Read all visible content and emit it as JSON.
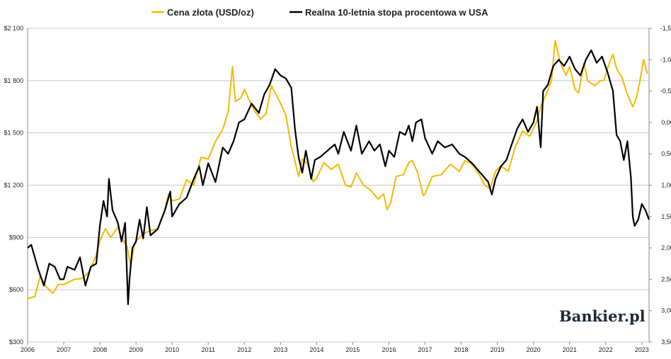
{
  "chart_data": {
    "type": "line",
    "title": "",
    "xlabel": "",
    "legend_position": "top",
    "grid": true,
    "x_ticks": [
      "2006",
      "2007",
      "2008",
      "2009",
      "2010",
      "2011",
      "2012",
      "2013",
      "2014",
      "2015",
      "2016",
      "2017",
      "2018",
      "2019",
      "2020",
      "2021",
      "2022",
      "2023"
    ],
    "y_left": {
      "min": 300,
      "max": 2100,
      "ticks": [
        "$300",
        "$600",
        "$900",
        "$1 200",
        "$1 500",
        "$1 800",
        "$2 100"
      ]
    },
    "y_right": {
      "min": -1.5,
      "max": 3.5,
      "inverted": true,
      "ticks": [
        "-1,50",
        "-1,00",
        "-0,50",
        "0,00",
        "0,50",
        "1,00",
        "1,50",
        "2,00",
        "2,50",
        "3,00",
        "3,50"
      ]
    },
    "series": [
      {
        "name": "Cena złota (USD/oz)",
        "axis": "left",
        "color": "#f5b800",
        "points": [
          [
            2006.0,
            550
          ],
          [
            2006.2,
            560
          ],
          [
            2006.35,
            680
          ],
          [
            2006.5,
            620
          ],
          [
            2006.7,
            580
          ],
          [
            2006.85,
            630
          ],
          [
            2007.0,
            630
          ],
          [
            2007.3,
            660
          ],
          [
            2007.5,
            665
          ],
          [
            2007.7,
            700
          ],
          [
            2007.9,
            800
          ],
          [
            2008.0,
            880
          ],
          [
            2008.15,
            950
          ],
          [
            2008.3,
            900
          ],
          [
            2008.5,
            960
          ],
          [
            2008.6,
            900
          ],
          [
            2008.75,
            850
          ],
          [
            2008.85,
            740
          ],
          [
            2008.95,
            850
          ],
          [
            2009.0,
            880
          ],
          [
            2009.2,
            920
          ],
          [
            2009.4,
            940
          ],
          [
            2009.6,
            950
          ],
          [
            2009.8,
            1060
          ],
          [
            2009.9,
            1150
          ],
          [
            2010.0,
            1110
          ],
          [
            2010.2,
            1120
          ],
          [
            2010.4,
            1230
          ],
          [
            2010.6,
            1200
          ],
          [
            2010.8,
            1360
          ],
          [
            2011.0,
            1350
          ],
          [
            2011.2,
            1450
          ],
          [
            2011.4,
            1520
          ],
          [
            2011.55,
            1620
          ],
          [
            2011.67,
            1880
          ],
          [
            2011.75,
            1680
          ],
          [
            2011.9,
            1700
          ],
          [
            2012.0,
            1750
          ],
          [
            2012.15,
            1680
          ],
          [
            2012.3,
            1620
          ],
          [
            2012.45,
            1580
          ],
          [
            2012.6,
            1610
          ],
          [
            2012.75,
            1770
          ],
          [
            2012.9,
            1710
          ],
          [
            2013.0,
            1670
          ],
          [
            2013.15,
            1600
          ],
          [
            2013.3,
            1420
          ],
          [
            2013.4,
            1340
          ],
          [
            2013.5,
            1250
          ],
          [
            2013.6,
            1350
          ],
          [
            2013.75,
            1320
          ],
          [
            2013.9,
            1220
          ],
          [
            2014.0,
            1240
          ],
          [
            2014.2,
            1330
          ],
          [
            2014.4,
            1290
          ],
          [
            2014.6,
            1320
          ],
          [
            2014.8,
            1200
          ],
          [
            2014.95,
            1190
          ],
          [
            2015.1,
            1270
          ],
          [
            2015.3,
            1200
          ],
          [
            2015.5,
            1170
          ],
          [
            2015.7,
            1120
          ],
          [
            2015.85,
            1150
          ],
          [
            2015.95,
            1060
          ],
          [
            2016.05,
            1100
          ],
          [
            2016.2,
            1250
          ],
          [
            2016.4,
            1260
          ],
          [
            2016.55,
            1330
          ],
          [
            2016.65,
            1340
          ],
          [
            2016.8,
            1270
          ],
          [
            2016.95,
            1140
          ],
          [
            2017.0,
            1150
          ],
          [
            2017.2,
            1250
          ],
          [
            2017.45,
            1260
          ],
          [
            2017.7,
            1320
          ],
          [
            2017.95,
            1280
          ],
          [
            2018.1,
            1340
          ],
          [
            2018.3,
            1320
          ],
          [
            2018.5,
            1260
          ],
          [
            2018.65,
            1200
          ],
          [
            2018.8,
            1180
          ],
          [
            2018.95,
            1280
          ],
          [
            2019.1,
            1310
          ],
          [
            2019.3,
            1280
          ],
          [
            2019.5,
            1420
          ],
          [
            2019.7,
            1510
          ],
          [
            2019.9,
            1480
          ],
          [
            2020.1,
            1570
          ],
          [
            2020.2,
            1650
          ],
          [
            2020.35,
            1720
          ],
          [
            2020.5,
            1800
          ],
          [
            2020.6,
            2030
          ],
          [
            2020.75,
            1900
          ],
          [
            2020.9,
            1830
          ],
          [
            2021.0,
            1880
          ],
          [
            2021.15,
            1750
          ],
          [
            2021.25,
            1730
          ],
          [
            2021.4,
            1900
          ],
          [
            2021.5,
            1800
          ],
          [
            2021.7,
            1770
          ],
          [
            2021.85,
            1800
          ],
          [
            2021.95,
            1800
          ],
          [
            2022.1,
            1900
          ],
          [
            2022.2,
            1950
          ],
          [
            2022.3,
            1870
          ],
          [
            2022.45,
            1820
          ],
          [
            2022.6,
            1720
          ],
          [
            2022.75,
            1650
          ],
          [
            2022.85,
            1700
          ],
          [
            2022.95,
            1800
          ],
          [
            2023.05,
            1920
          ],
          [
            2023.15,
            1840
          ]
        ]
      },
      {
        "name": "Realna 10-letnia stopa procentowa w USA",
        "axis": "right",
        "color": "#000000",
        "points": [
          [
            2006.0,
            2.0
          ],
          [
            2006.1,
            1.95
          ],
          [
            2006.3,
            2.35
          ],
          [
            2006.45,
            2.6
          ],
          [
            2006.6,
            2.25
          ],
          [
            2006.75,
            2.3
          ],
          [
            2006.9,
            2.5
          ],
          [
            2007.0,
            2.5
          ],
          [
            2007.1,
            2.3
          ],
          [
            2007.3,
            2.35
          ],
          [
            2007.45,
            2.15
          ],
          [
            2007.6,
            2.6
          ],
          [
            2007.75,
            2.3
          ],
          [
            2007.9,
            2.25
          ],
          [
            2008.0,
            1.65
          ],
          [
            2008.1,
            1.25
          ],
          [
            2008.2,
            1.5
          ],
          [
            2008.25,
            0.9
          ],
          [
            2008.35,
            1.4
          ],
          [
            2008.5,
            1.6
          ],
          [
            2008.6,
            1.9
          ],
          [
            2008.7,
            1.6
          ],
          [
            2008.78,
            2.9
          ],
          [
            2008.82,
            2.5
          ],
          [
            2008.9,
            2.0
          ],
          [
            2009.0,
            1.9
          ],
          [
            2009.1,
            1.55
          ],
          [
            2009.2,
            1.85
          ],
          [
            2009.3,
            1.35
          ],
          [
            2009.4,
            1.8
          ],
          [
            2009.6,
            1.7
          ],
          [
            2009.8,
            1.4
          ],
          [
            2009.95,
            1.1
          ],
          [
            2010.0,
            1.5
          ],
          [
            2010.2,
            1.3
          ],
          [
            2010.4,
            1.2
          ],
          [
            2010.6,
            0.9
          ],
          [
            2010.75,
            0.7
          ],
          [
            2010.85,
            1.0
          ],
          [
            2011.0,
            0.65
          ],
          [
            2011.2,
            0.95
          ],
          [
            2011.4,
            0.4
          ],
          [
            2011.55,
            0.5
          ],
          [
            2011.7,
            0.3
          ],
          [
            2011.85,
            0.0
          ],
          [
            2012.0,
            -0.05
          ],
          [
            2012.2,
            -0.3
          ],
          [
            2012.4,
            -0.15
          ],
          [
            2012.55,
            -0.45
          ],
          [
            2012.7,
            -0.6
          ],
          [
            2012.85,
            -0.85
          ],
          [
            2013.0,
            -0.75
          ],
          [
            2013.15,
            -0.7
          ],
          [
            2013.3,
            -0.55
          ],
          [
            2013.4,
            0.1
          ],
          [
            2013.5,
            0.55
          ],
          [
            2013.6,
            0.8
          ],
          [
            2013.7,
            0.45
          ],
          [
            2013.85,
            0.9
          ],
          [
            2013.95,
            0.6
          ],
          [
            2014.1,
            0.55
          ],
          [
            2014.3,
            0.45
          ],
          [
            2014.5,
            0.35
          ],
          [
            2014.6,
            0.5
          ],
          [
            2014.75,
            0.15
          ],
          [
            2014.95,
            0.45
          ],
          [
            2015.1,
            0.05
          ],
          [
            2015.25,
            0.5
          ],
          [
            2015.45,
            0.3
          ],
          [
            2015.6,
            0.45
          ],
          [
            2015.75,
            0.35
          ],
          [
            2015.9,
            0.7
          ],
          [
            2016.0,
            0.45
          ],
          [
            2016.15,
            0.55
          ],
          [
            2016.3,
            0.15
          ],
          [
            2016.45,
            0.2
          ],
          [
            2016.55,
            0.05
          ],
          [
            2016.65,
            0.3
          ],
          [
            2016.75,
            0.0
          ],
          [
            2016.9,
            -0.05
          ],
          [
            2017.0,
            0.25
          ],
          [
            2017.2,
            0.5
          ],
          [
            2017.35,
            0.3
          ],
          [
            2017.55,
            0.4
          ],
          [
            2017.75,
            0.35
          ],
          [
            2017.95,
            0.5
          ],
          [
            2018.1,
            0.55
          ],
          [
            2018.3,
            0.65
          ],
          [
            2018.45,
            0.75
          ],
          [
            2018.6,
            0.85
          ],
          [
            2018.75,
            0.95
          ],
          [
            2018.85,
            1.15
          ],
          [
            2018.95,
            0.9
          ],
          [
            2019.1,
            0.7
          ],
          [
            2019.25,
            0.6
          ],
          [
            2019.4,
            0.35
          ],
          [
            2019.55,
            0.1
          ],
          [
            2019.7,
            -0.05
          ],
          [
            2019.85,
            0.15
          ],
          [
            2020.0,
            0.0
          ],
          [
            2020.1,
            -0.25
          ],
          [
            2020.2,
            0.4
          ],
          [
            2020.27,
            -0.5
          ],
          [
            2020.4,
            -0.6
          ],
          [
            2020.55,
            -0.9
          ],
          [
            2020.7,
            -1.0
          ],
          [
            2020.85,
            -0.9
          ],
          [
            2021.0,
            -1.05
          ],
          [
            2021.15,
            -0.85
          ],
          [
            2021.3,
            -0.75
          ],
          [
            2021.45,
            -1.0
          ],
          [
            2021.6,
            -1.15
          ],
          [
            2021.75,
            -0.95
          ],
          [
            2021.9,
            -1.05
          ],
          [
            2022.05,
            -0.8
          ],
          [
            2022.2,
            -0.5
          ],
          [
            2022.3,
            0.2
          ],
          [
            2022.4,
            0.3
          ],
          [
            2022.5,
            0.6
          ],
          [
            2022.6,
            0.3
          ],
          [
            2022.7,
            0.9
          ],
          [
            2022.75,
            1.5
          ],
          [
            2022.8,
            1.65
          ],
          [
            2022.9,
            1.55
          ],
          [
            2023.0,
            1.3
          ],
          [
            2023.1,
            1.4
          ],
          [
            2023.2,
            1.55
          ]
        ]
      }
    ],
    "watermark": "Bankier.pl"
  }
}
